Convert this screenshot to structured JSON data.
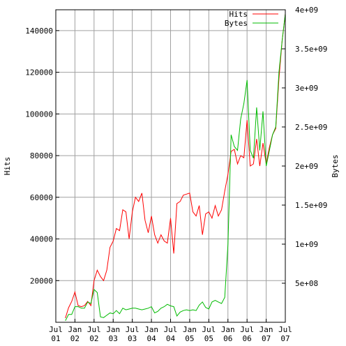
{
  "chart_data": {
    "type": "line",
    "title": "",
    "xlabel": "",
    "ylabel_left": "Hits",
    "ylabel_right": "Bytes",
    "xlim": [
      0,
      72
    ],
    "ylim_left": [
      0,
      150000
    ],
    "ylim_right": [
      0,
      4000000000
    ],
    "grid": true,
    "legend_position": "top-right",
    "x_ticks": [
      {
        "x": 0,
        "line1": "Jul",
        "line2": "01"
      },
      {
        "x": 6,
        "line1": "Jan",
        "line2": "02"
      },
      {
        "x": 12,
        "line1": "Jul",
        "line2": "02"
      },
      {
        "x": 18,
        "line1": "Jan",
        "line2": "03"
      },
      {
        "x": 24,
        "line1": "Jul",
        "line2": "03"
      },
      {
        "x": 30,
        "line1": "Jan",
        "line2": "04"
      },
      {
        "x": 36,
        "line1": "Jul",
        "line2": "04"
      },
      {
        "x": 42,
        "line1": "Jan",
        "line2": "05"
      },
      {
        "x": 48,
        "line1": "Jul",
        "line2": "05"
      },
      {
        "x": 54,
        "line1": "Jan",
        "line2": "06"
      },
      {
        "x": 60,
        "line1": "Jul",
        "line2": "06"
      },
      {
        "x": 66,
        "line1": "Jan",
        "line2": "07"
      },
      {
        "x": 72,
        "line1": "Jul",
        "line2": "07"
      }
    ],
    "y_left_ticks": [
      {
        "value": 20000,
        "label": "20000"
      },
      {
        "value": 40000,
        "label": "40000"
      },
      {
        "value": 60000,
        "label": "60000"
      },
      {
        "value": 80000,
        "label": "80000"
      },
      {
        "value": 100000,
        "label": "100000"
      },
      {
        "value": 120000,
        "label": "120000"
      },
      {
        "value": 140000,
        "label": "140000"
      }
    ],
    "y_right_ticks": [
      {
        "value": 500000000,
        "label": "5e+08"
      },
      {
        "value": 1000000000,
        "label": "1e+09"
      },
      {
        "value": 1500000000,
        "label": "1.5e+09"
      },
      {
        "value": 2000000000,
        "label": "2e+09"
      },
      {
        "value": 2500000000,
        "label": "2.5e+09"
      },
      {
        "value": 3000000000,
        "label": "3e+09"
      },
      {
        "value": 3500000000,
        "label": "3.5e+09"
      },
      {
        "value": 4000000000,
        "label": "4e+09"
      }
    ],
    "series": [
      {
        "name": "Hits",
        "axis": "left",
        "color": "#ff0000",
        "x": [
          3,
          4,
          5,
          6,
          7,
          8,
          9,
          10,
          11,
          12,
          13,
          14,
          15,
          16,
          17,
          18,
          19,
          20,
          21,
          22,
          23,
          24,
          25,
          26,
          27,
          28,
          29,
          30,
          31,
          32,
          33,
          34,
          35,
          36,
          37,
          38,
          39,
          40,
          41,
          42,
          43,
          44,
          45,
          46,
          47,
          48,
          49,
          50,
          51,
          52,
          53,
          54,
          55,
          56,
          57,
          58,
          59,
          60,
          61,
          62,
          63,
          64,
          65,
          66,
          67,
          68,
          69,
          70,
          71,
          72
        ],
        "values": [
          2000,
          7000,
          10000,
          14500,
          8000,
          7500,
          8000,
          10000,
          8000,
          20000,
          25000,
          22000,
          20000,
          25000,
          36000,
          39000,
          45000,
          44000,
          54000,
          53000,
          40000,
          53000,
          60000,
          58000,
          62000,
          49000,
          43000,
          51000,
          42000,
          38000,
          42000,
          39000,
          38000,
          50000,
          33000,
          57000,
          58000,
          61000,
          61500,
          62000,
          53000,
          51000,
          56000,
          42000,
          52000,
          53000,
          50000,
          56000,
          51000,
          54000,
          63000,
          71000,
          82000,
          83000,
          76000,
          80000,
          79000,
          97000,
          75000,
          76000,
          88000,
          75000,
          86000,
          76000,
          84000,
          90000,
          93000,
          117000,
          135000,
          148000
        ]
      },
      {
        "name": "Bytes",
        "axis": "right",
        "color": "#00bb00",
        "x": [
          3,
          4,
          5,
          6,
          7,
          8,
          9,
          10,
          11,
          12,
          13,
          14,
          15,
          16,
          17,
          18,
          19,
          20,
          21,
          22,
          23,
          24,
          25,
          26,
          27,
          28,
          29,
          30,
          31,
          32,
          33,
          34,
          35,
          36,
          37,
          38,
          39,
          40,
          41,
          42,
          43,
          44,
          45,
          46,
          47,
          48,
          49,
          50,
          51,
          52,
          53,
          54,
          55,
          56,
          57,
          58,
          59,
          60,
          61,
          62,
          63,
          64,
          65,
          66,
          67,
          68,
          69,
          70,
          71,
          72
        ],
        "values": [
          20000000,
          100000000,
          100000000,
          200000000,
          200000000,
          180000000,
          180000000,
          260000000,
          240000000,
          420000000,
          380000000,
          70000000,
          60000000,
          90000000,
          120000000,
          110000000,
          150000000,
          110000000,
          180000000,
          160000000,
          170000000,
          180000000,
          180000000,
          170000000,
          160000000,
          170000000,
          180000000,
          200000000,
          120000000,
          140000000,
          180000000,
          200000000,
          230000000,
          210000000,
          200000000,
          80000000,
          130000000,
          150000000,
          160000000,
          150000000,
          160000000,
          150000000,
          220000000,
          260000000,
          190000000,
          170000000,
          260000000,
          280000000,
          260000000,
          240000000,
          320000000,
          1000000000,
          2400000000,
          2250000000,
          2200000000,
          2600000000,
          2800000000,
          3100000000,
          2200000000,
          2100000000,
          2750000000,
          2200000000,
          2700000000,
          2000000000,
          2200000000,
          2400000000,
          2500000000,
          3200000000,
          3600000000,
          3950000000
        ]
      }
    ]
  }
}
